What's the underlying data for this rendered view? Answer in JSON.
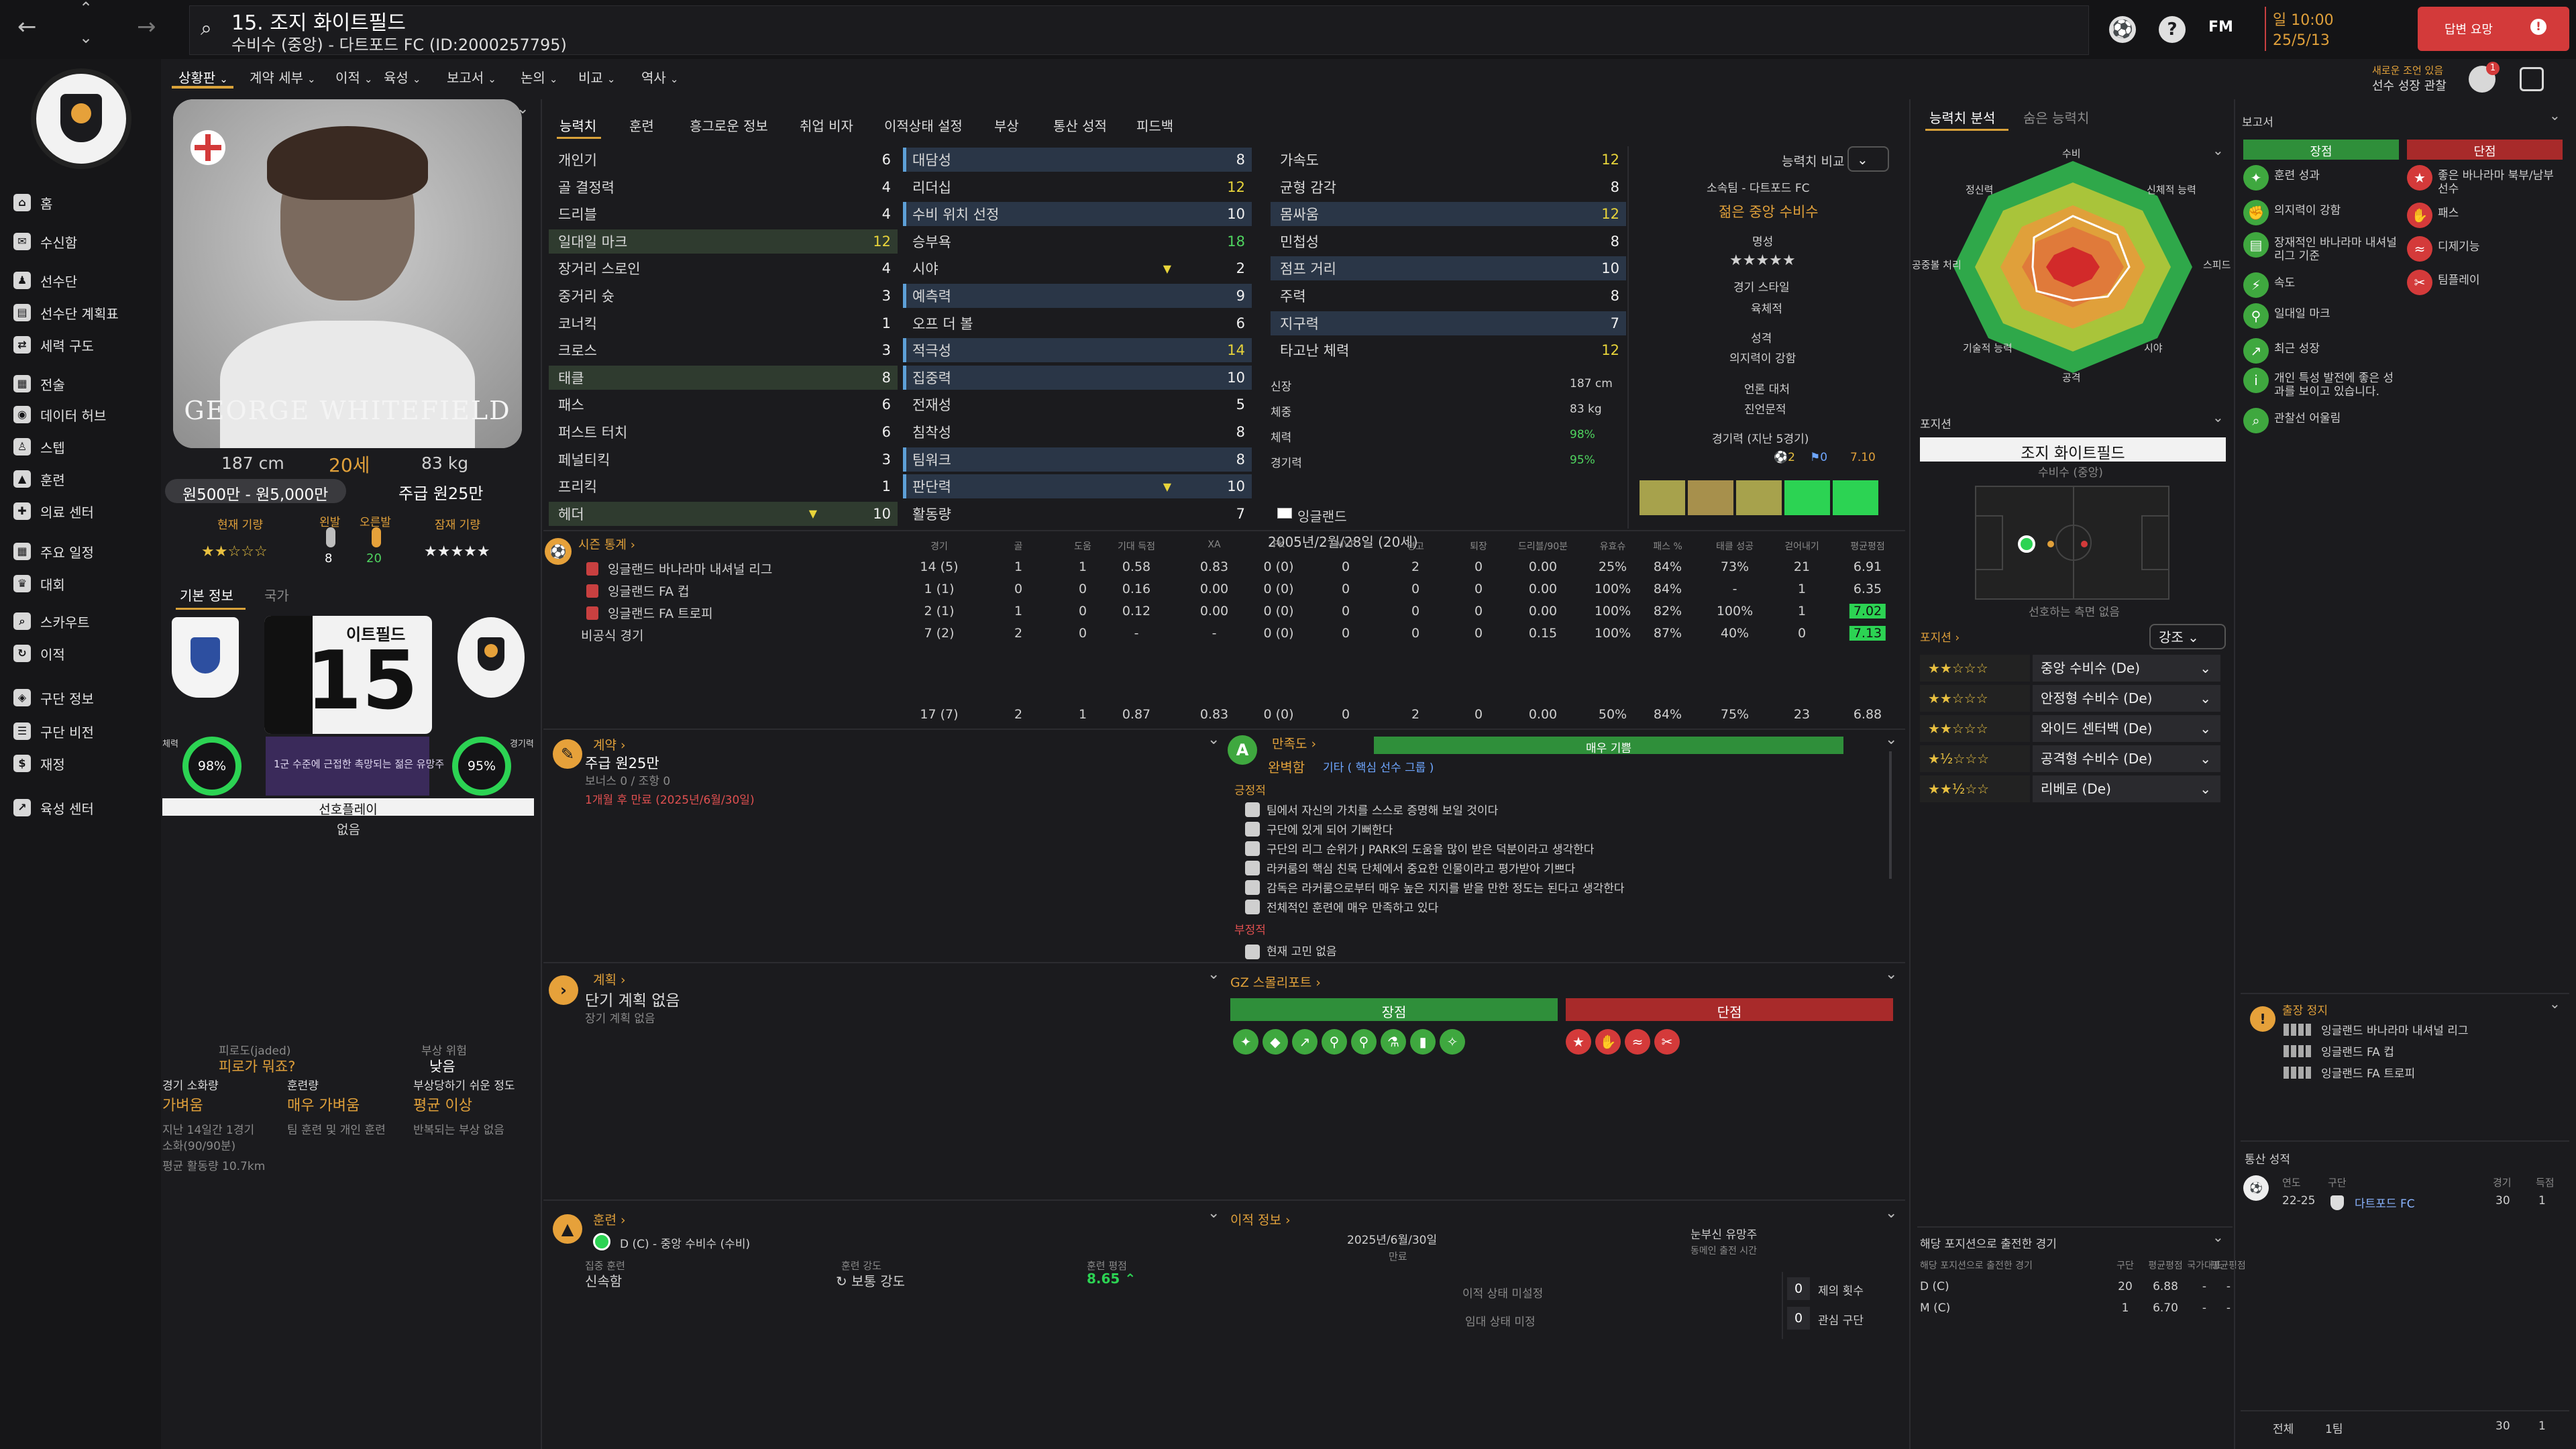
{
  "header": {
    "title": "15. 조지 화이트필드",
    "subtitle": "수비수 (중앙) - 다트포드 FC (ID:2000257795)",
    "date_time": "일 10:00",
    "date": "25/5/13",
    "continue_label": "답변 요망",
    "new_notice_line1": "새로운 조언 있음",
    "new_notice_line2": "선수 성장 관찰",
    "fm_label": "FM",
    "help_label": "?"
  },
  "sidebar": {
    "items": [
      {
        "label": "홈",
        "icon": "home-icon"
      },
      {
        "label": "수신함",
        "icon": "inbox-icon"
      },
      {
        "label": "선수단",
        "icon": "squad-icon"
      },
      {
        "label": "선수단 계획표",
        "icon": "plan-icon"
      },
      {
        "label": "세력 구도",
        "icon": "dynamics-icon"
      },
      {
        "label": "전술",
        "icon": "tactics-icon"
      },
      {
        "label": "데이터 허브",
        "icon": "data-icon"
      },
      {
        "label": "스텝",
        "icon": "staff-icon"
      },
      {
        "label": "훈련",
        "icon": "training-icon"
      },
      {
        "label": "의료 센터",
        "icon": "medical-icon"
      },
      {
        "label": "주요 일정",
        "icon": "calendar-icon"
      },
      {
        "label": "대회",
        "icon": "trophy-icon"
      },
      {
        "label": "스카우트",
        "icon": "scout-icon"
      },
      {
        "label": "이적",
        "icon": "transfer-icon"
      },
      {
        "label": "구단 정보",
        "icon": "club-icon"
      },
      {
        "label": "구단 비전",
        "icon": "vision-icon"
      },
      {
        "label": "재정",
        "icon": "finance-icon"
      },
      {
        "label": "육성 센터",
        "icon": "development-icon"
      }
    ]
  },
  "top_tabs": [
    "상황판",
    "계약 세부",
    "이적",
    "육성",
    "보고서",
    "논의",
    "비교",
    "역사"
  ],
  "profile": {
    "name_overlay": "GEORGE WHITEFIELD",
    "height": "187 cm",
    "age": "20세",
    "weight": "83 kg",
    "value": "원500만 - 원5,000만",
    "wage": "주급 원25만",
    "current_ability_label": "현재 기량",
    "potential_label": "잠재 기량",
    "left_foot_label": "왼발",
    "right_foot_label": "오른발",
    "left_foot": "8",
    "right_foot": "20",
    "current_stars": "★★☆☆☆",
    "potential_stars": "★★★★★",
    "sub_tabs": [
      "기본 정보",
      "국가"
    ],
    "shirt_name": "이트필드",
    "shirt_number": "15",
    "condition_label": "체력",
    "condition": "98%",
    "sharpness_label": "경기력",
    "sharpness": "95%",
    "squad_status": "1군 수준에 근접한 촉망되는 젊은 유망주",
    "player_role_label": "선호플레이",
    "player_role": "없음"
  },
  "fatigue": {
    "title": "피로도(jaded)",
    "status": "피로가 뭐죠?",
    "injury_risk_label": "부상 위험",
    "injury_risk": "낮음",
    "match_load_label": "경기 소화량",
    "match_load": "가벼움",
    "training_load_label": "훈련량",
    "training_load": "매우 가벼움",
    "injury_prone_label": "부상당하기 쉬운 정도",
    "injury_prone": "평균 이상",
    "match_note1": "지난 14일간 1경기",
    "match_note2": "소화(90/90분)",
    "training_note": "팀 훈련 및 개인 훈련",
    "injury_note": "반복되는 부상 없음",
    "distance": "평균 활동량 10.7km"
  },
  "attr_tabs": [
    "능력치",
    "훈련",
    "흥그로운 정보",
    "취업 비자",
    "이적상태 설정",
    "부상",
    "통산 성적",
    "피드백"
  ],
  "technical": [
    {
      "name": "개인기",
      "value": "6"
    },
    {
      "name": "골 결정력",
      "value": "4"
    },
    {
      "name": "드리블",
      "value": "4"
    },
    {
      "name": "일대일 마크",
      "value": "12"
    },
    {
      "name": "장거리 스로인",
      "value": "4"
    },
    {
      "name": "중거리 슛",
      "value": "3"
    },
    {
      "name": "코너킥",
      "value": "1"
    },
    {
      "name": "크로스",
      "value": "3"
    },
    {
      "name": "태클",
      "value": "8"
    },
    {
      "name": "패스",
      "value": "6"
    },
    {
      "name": "퍼스트 터치",
      "value": "6"
    },
    {
      "name": "페널티킥",
      "value": "3"
    },
    {
      "name": "프리킥",
      "value": "1"
    },
    {
      "name": "헤더",
      "value": "10"
    }
  ],
  "mental": [
    {
      "name": "대담성",
      "value": "8"
    },
    {
      "name": "리더십",
      "value": "12"
    },
    {
      "name": "수비 위치 선정",
      "value": "10"
    },
    {
      "name": "승부욕",
      "value": "18"
    },
    {
      "name": "시야",
      "value": "2"
    },
    {
      "name": "예측력",
      "value": "9"
    },
    {
      "name": "오프 더 볼",
      "value": "6"
    },
    {
      "name": "적극성",
      "value": "14"
    },
    {
      "name": "집중력",
      "value": "10"
    },
    {
      "name": "전재성",
      "value": "5"
    },
    {
      "name": "침착성",
      "value": "8"
    },
    {
      "name": "팀워크",
      "value": "8"
    },
    {
      "name": "판단력",
      "value": "10"
    },
    {
      "name": "활동량",
      "value": "7"
    }
  ],
  "physical": [
    {
      "name": "가속도",
      "value": "12"
    },
    {
      "name": "균형 감각",
      "value": "8"
    },
    {
      "name": "몸싸움",
      "value": "12"
    },
    {
      "name": "민첩성",
      "value": "8"
    },
    {
      "name": "점프 거리",
      "value": "10"
    },
    {
      "name": "주력",
      "value": "8"
    },
    {
      "name": "지구력",
      "value": "7"
    },
    {
      "name": "타고난 체력",
      "value": "12"
    }
  ],
  "body": [
    {
      "label": "신장",
      "value": "187 cm"
    },
    {
      "label": "체중",
      "value": "83 kg"
    },
    {
      "label": "체력",
      "value": "98%"
    },
    {
      "label": "경기력",
      "value": "95%"
    }
  ],
  "nationality": "잉글랜드",
  "birth": "2005년/2월/28일 (20세)",
  "info_col": {
    "compare_label": "능력치 비교",
    "club": "소속팀 - 다트포드 FC",
    "role": "젊은 중앙 수비수",
    "reputation_label": "명성",
    "reputation_stars": "★★★★★",
    "style_label": "경기 스타일",
    "style": "육체적",
    "personality_label": "성격",
    "personality": "의지력이 강함",
    "media_label": "언론 대처",
    "media": "진언문적",
    "form_label": "경기력 (지난 5경기)",
    "form_goals": "2",
    "form_assists": "0",
    "form_rating": "7.10"
  },
  "season_stats": {
    "title": "시즌 통계",
    "headers": [
      "경기",
      "골",
      "도움",
      "기대 득점",
      "XA",
      "PK",
      "MVP",
      "경고",
      "퇴장",
      "드리블/90분",
      "유효슈",
      "패스 %",
      "태클 성공",
      "걷어내기",
      "평균평점"
    ],
    "rows": [
      [
        "잉글랜드 바나라마 내셔널 리그",
        "14 (5)",
        "1",
        "1",
        "0.58",
        "0.83",
        "0 (0)",
        "0",
        "2",
        "0",
        "0.00",
        "25%",
        "84%",
        "73%",
        "21",
        "6.91"
      ],
      [
        "잉글랜드 FA 컵",
        "1 (1)",
        "0",
        "0",
        "0.16",
        "0.00",
        "0 (0)",
        "0",
        "0",
        "0",
        "0.00",
        "100%",
        "84%",
        "-",
        "1",
        "6.35"
      ],
      [
        "잉글랜드 FA 트로피",
        "2 (1)",
        "1",
        "0",
        "0.12",
        "0.00",
        "0 (0)",
        "0",
        "0",
        "0",
        "0.00",
        "100%",
        "82%",
        "100%",
        "1",
        "7.02"
      ],
      [
        "비공식 경기",
        "7 (2)",
        "2",
        "0",
        "-",
        "-",
        "0 (0)",
        "0",
        "0",
        "0",
        "0.15",
        "100%",
        "87%",
        "40%",
        "0",
        "7.13"
      ]
    ],
    "totals": [
      "17 (7)",
      "2",
      "1",
      "0.87",
      "0.83",
      "0 (0)",
      "0",
      "2",
      "0",
      "0.00",
      "50%",
      "84%",
      "75%",
      "23",
      "6.88"
    ]
  },
  "contract": {
    "title": "계약",
    "wage": "주급 원25만",
    "bonus": "보너스 0 / 조항 0",
    "expiry": "1개월 후 만료 (2025년/6월/30일)"
  },
  "happiness": {
    "title": "만족도",
    "bar_label": "매우 기쁨",
    "level": "완벽함",
    "role": "기타 ( 핵심 선수 그룹 )",
    "positive_label": "긍정적",
    "positives": [
      "팀에서 자신의 가치를 스스로 증명해 보일 것이다",
      "구단에 있게 되어 기뻐한다",
      "구단의 리그 순위가 J PARK의 도움을 많이 받은 덕분이라고 생각한다",
      "라커룸의 핵심 친목 단체에서 중요한 인물이라고 평가받아 기쁘다",
      "감독은 라커룸으로부터 매우 높은 지지를 받을 만한 정도는 된다고 생각한다",
      "전체적인 훈련에 매우 만족하고 있다"
    ],
    "negative_label": "부정적",
    "negatives": [
      "현재 고민 없음"
    ]
  },
  "plan": {
    "title": "계획",
    "short": "단기 계획 없음",
    "long": "장기 계획 없음"
  },
  "gz_report": {
    "title": "GZ 스몰리포트",
    "strengths_label": "장점",
    "weaknesses_label": "단점"
  },
  "training": {
    "title": "훈련",
    "focus": "D (C) - 중앙 수비수 (수비)",
    "focus_label": "집중 훈련",
    "focus_value": "신속함",
    "intensity_label": "훈련 강도",
    "intensity_value": "보통 강도",
    "rating_label": "훈련 평점",
    "rating_value": "8.65"
  },
  "transfer_info": {
    "title": "이적 정보",
    "expiry_date": "2025년/6월/30일",
    "expiry_label": "만료",
    "injury_label": "눈부신 유망주",
    "injury_sub": "동메인 출전 시간",
    "status_label": "이적 상태 미설정",
    "loan_label": "임대 상태 미정",
    "offers_count": "0",
    "offers_label": "제의 횟수",
    "interest_count": "0",
    "interest_label": "관심 구단"
  },
  "analysis": {
    "tabs": [
      "능력치 분석",
      "숨은 능력치"
    ],
    "axes": [
      "수비",
      "신체적 능력",
      "스피드",
      "시야",
      "공격",
      "기술적 능력",
      "공중볼 처리",
      "정신력"
    ]
  },
  "position": {
    "title": "포지션",
    "name": "조지 화이트필드",
    "sub": "수비수 (중앙)",
    "pitch_note": "선호하는 측면 없음",
    "list_label": "포지션",
    "highlight_label": "강조",
    "positions": [
      {
        "stars": "★★☆☆☆",
        "name": "중앙 수비수 (De)"
      },
      {
        "stars": "★★☆☆☆",
        "name": "안정형 수비수 (De)"
      },
      {
        "stars": "★★☆☆☆",
        "name": "와이드 센터백 (De)"
      },
      {
        "stars": "★½☆☆☆",
        "name": "공격형 수비수 (De)"
      },
      {
        "stars": "★★½☆☆",
        "name": "리베로 (De)"
      }
    ]
  },
  "games_by_position": {
    "title": "해당 포지션으로 출전한 경기",
    "headers": [
      "해당 포지션으로 출전한 경기",
      "구단",
      "평균평점",
      "국가대표",
      "평균평점"
    ],
    "rows": [
      {
        "pos": "D (C)",
        "apps": "20",
        "rating": "6.88",
        "intl": "-",
        "intl_rating": "-"
      },
      {
        "pos": "M (C)",
        "apps": "1",
        "rating": "6.70",
        "intl": "-",
        "intl_rating": "-"
      }
    ]
  },
  "report": {
    "title": "보고서",
    "strengths_label": "장점",
    "weaknesses_label": "단점",
    "strengths": [
      "훈련 성과",
      "의지력이 강함",
      "장재적인 바나라마 내셔널 리그 기준",
      "속도",
      "일대일 마크",
      "최근 성장",
      "개인 특성 발전에 좋은 성과를 보이고 있습니다.",
      "관찰선 어울림"
    ],
    "weaknesses": [
      "좋은 바나라마 북부/남부 선수",
      "패스",
      "디제기능",
      "팀플레이"
    ]
  },
  "suspension": {
    "title": "출장 정지",
    "items": [
      "잉글랜드 바나라마 내셔널 리그",
      "잉글랜드 FA 컵",
      "잉글랜드 FA 트로피"
    ]
  },
  "career": {
    "title": "통산 성적",
    "headers": [
      "연도",
      "구단",
      "경기",
      "득점"
    ],
    "rows": [
      {
        "year": "22-25",
        "club": "다트포드 FC",
        "apps": "30",
        "goals": "1"
      }
    ],
    "total_label": "전체",
    "total_clubs": "1팀",
    "total_apps": "30",
    "total_goals": "1"
  }
}
